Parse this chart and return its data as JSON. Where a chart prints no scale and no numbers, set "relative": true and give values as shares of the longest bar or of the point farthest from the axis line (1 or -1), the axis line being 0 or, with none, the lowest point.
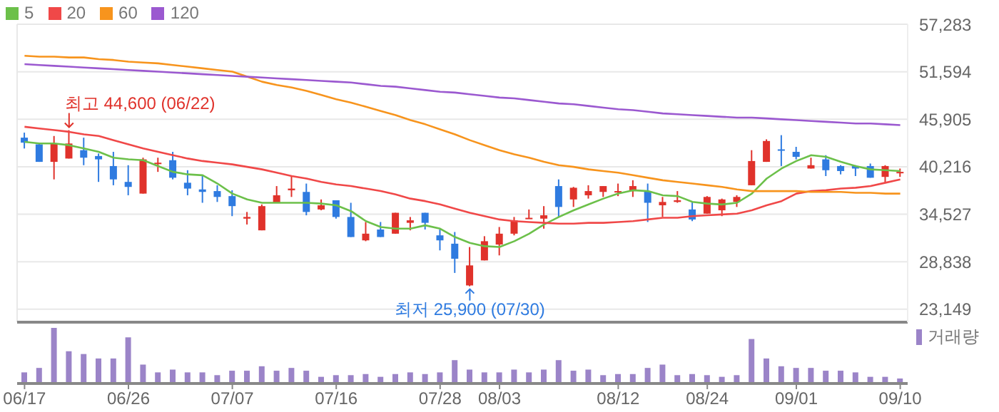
{
  "chart_data": [
    {
      "type": "candlestick",
      "categories": [
        null,
        null,
        null,
        null,
        null,
        null,
        null,
        null,
        null,
        null,
        null,
        null,
        null,
        null,
        null,
        null,
        null,
        null,
        null,
        null,
        null,
        null,
        null,
        null,
        null,
        null,
        null,
        null,
        null,
        null,
        null,
        null,
        null,
        null,
        null,
        null,
        null,
        null,
        null,
        null,
        null,
        null,
        null,
        null,
        null,
        null,
        null,
        null,
        null,
        null,
        null,
        null,
        null,
        null,
        null,
        null,
        null,
        null,
        null,
        null
      ],
      "ohlc": [
        [
          43700,
          44300,
          42400,
          43100
        ],
        [
          42900,
          43000,
          40800,
          40800
        ],
        [
          40800,
          43900,
          38700,
          43000
        ],
        [
          41200,
          44600,
          41200,
          43000
        ],
        [
          42200,
          43700,
          40400,
          41300
        ],
        [
          41500,
          41800,
          38400,
          41100
        ],
        [
          40300,
          42000,
          38000,
          38700
        ],
        [
          38400,
          40400,
          36800,
          37800
        ],
        [
          37000,
          41300,
          37000,
          41100
        ],
        [
          40600,
          41300,
          39600,
          40700
        ],
        [
          41000,
          42000,
          38700,
          38900
        ],
        [
          38300,
          39800,
          36800,
          37600
        ],
        [
          37500,
          39100,
          35900,
          37200
        ],
        [
          37300,
          38000,
          36000,
          36600
        ],
        [
          36700,
          37400,
          34300,
          35500
        ],
        [
          34000,
          34800,
          33300,
          34200
        ],
        [
          32600,
          35700,
          32600,
          35500
        ],
        [
          35900,
          37900,
          35900,
          36800
        ],
        [
          37400,
          39100,
          36600,
          37600
        ],
        [
          37200,
          38200,
          34400,
          34800
        ],
        [
          35100,
          36300,
          35000,
          35600
        ],
        [
          36200,
          36200,
          34000,
          34200
        ],
        [
          34200,
          35900,
          31800,
          31800
        ],
        [
          31400,
          33600,
          31300,
          32200
        ],
        [
          32700,
          33600,
          31800,
          31800
        ],
        [
          32200,
          34700,
          32200,
          34700
        ],
        [
          33500,
          34200,
          32600,
          33800
        ],
        [
          34700,
          34700,
          32700,
          33500
        ],
        [
          32000,
          32700,
          30200,
          31400
        ],
        [
          31000,
          32400,
          27500,
          29200
        ],
        [
          26000,
          30600,
          25900,
          28400
        ],
        [
          29000,
          31900,
          29000,
          31300
        ],
        [
          30900,
          33000,
          29600,
          32200
        ],
        [
          32200,
          34200,
          32000,
          33800
        ],
        [
          34000,
          35100,
          34000,
          34100
        ],
        [
          34000,
          35500,
          32800,
          34400
        ],
        [
          37900,
          38700,
          34200,
          35400
        ],
        [
          36300,
          37800,
          35400,
          37700
        ],
        [
          36800,
          38000,
          36400,
          37300
        ],
        [
          37200,
          37900,
          36600,
          37900
        ],
        [
          37200,
          38200,
          36700,
          37300
        ],
        [
          37300,
          38600,
          36600,
          37900
        ],
        [
          37300,
          38200,
          33600,
          35900
        ],
        [
          35600,
          36600,
          34200,
          36000
        ],
        [
          36000,
          37300,
          35900,
          36200
        ],
        [
          35100,
          36000,
          33700,
          33900
        ],
        [
          34600,
          36700,
          34600,
          36600
        ],
        [
          35000,
          36400,
          34300,
          36300
        ],
        [
          36000,
          36800,
          35400,
          36600
        ],
        [
          38000,
          42200,
          38000,
          40900
        ],
        [
          40800,
          43500,
          40800,
          43300
        ],
        [
          42300,
          44000,
          40300,
          42200
        ],
        [
          42000,
          42600,
          41100,
          41400
        ],
        [
          40000,
          41300,
          40000,
          40400
        ],
        [
          41100,
          41600,
          39100,
          39800
        ],
        [
          40300,
          40400,
          39300,
          39700
        ],
        [
          40300,
          40400,
          39100,
          40000
        ],
        [
          40300,
          40600,
          38900,
          38900
        ],
        [
          39000,
          40400,
          38300,
          40300
        ],
        [
          39500,
          40000,
          39000,
          39600
        ]
      ],
      "colors": [
        "#2f7be0",
        "#2f7be0",
        "#e0322b",
        "#e0322b",
        "#2f7be0",
        "#2f7be0",
        "#2f7be0",
        "#2f7be0",
        "#e0322b",
        "#e0322b",
        "#2f7be0",
        "#2f7be0",
        "#2f7be0",
        "#2f7be0",
        "#2f7be0",
        "#e0322b",
        "#e0322b",
        "#e0322b",
        "#e0322b",
        "#2f7be0",
        "#e0322b",
        "#2f7be0",
        "#2f7be0",
        "#e0322b",
        "#2f7be0",
        "#e0322b",
        "#e0322b",
        "#2f7be0",
        "#2f7be0",
        "#2f7be0",
        "#e0322b",
        "#e0322b",
        "#e0322b",
        "#e0322b",
        "#e0322b",
        "#e0322b",
        "#2f7be0",
        "#e0322b",
        "#e0322b",
        "#e0322b",
        "#e0322b",
        "#e0322b",
        "#2f7be0",
        "#e0322b",
        "#e0322b",
        "#2f7be0",
        "#e0322b",
        "#e0322b",
        "#e0322b",
        "#e0322b",
        "#e0322b",
        "#2f7be0",
        "#2f7be0",
        "#e0322b",
        "#2f7be0",
        "#2f7be0",
        "#2f7be0",
        "#2f7be0",
        "#e0322b",
        "#e0322b"
      ],
      "series": [
        {
          "type": "line",
          "name": "5",
          "color": "#6cc04a",
          "values": [
            43200,
            43000,
            43000,
            42800,
            42400,
            42000,
            41300,
            41100,
            41000,
            40300,
            39600,
            39300,
            39200,
            38200,
            37000,
            36300,
            35900,
            35900,
            35900,
            35900,
            35800,
            35600,
            34900,
            33700,
            33000,
            32800,
            32800,
            33200,
            32800,
            31800,
            31100,
            30700,
            30600,
            31300,
            32200,
            33300,
            34200,
            35000,
            35700,
            36400,
            37000,
            37400,
            37300,
            36800,
            36700,
            36000,
            35800,
            35700,
            35900,
            37000,
            38800,
            40000,
            40900,
            41600,
            41400,
            40800,
            40300,
            39900,
            39800,
            39700
          ]
        },
        {
          "type": "line",
          "name": "20",
          "color": "#f04848",
          "values": [
            45000,
            44800,
            44600,
            44400,
            44100,
            43900,
            43400,
            42900,
            42400,
            42000,
            41600,
            41200,
            40900,
            40700,
            40500,
            40200,
            39900,
            39500,
            39100,
            38800,
            38400,
            38100,
            37900,
            37600,
            37300,
            36900,
            36400,
            36100,
            35700,
            35200,
            34700,
            34300,
            33900,
            33700,
            33600,
            33500,
            33400,
            33400,
            33500,
            33500,
            33600,
            33700,
            33900,
            34100,
            34100,
            34300,
            34400,
            34500,
            34600,
            35000,
            35600,
            36100,
            37000,
            37300,
            37400,
            37600,
            37700,
            37900,
            38300,
            38700
          ]
        },
        {
          "type": "line",
          "name": "60",
          "color": "#f7941d",
          "values": [
            53500,
            53400,
            53400,
            53300,
            53300,
            53100,
            53000,
            52800,
            52700,
            52600,
            52400,
            52200,
            52000,
            51800,
            51600,
            51000,
            50400,
            50000,
            49700,
            49300,
            48800,
            48300,
            47900,
            47400,
            46900,
            46400,
            45800,
            45300,
            44700,
            44100,
            43400,
            42800,
            42200,
            41700,
            41300,
            40800,
            40400,
            40200,
            39900,
            39700,
            39500,
            39200,
            38900,
            38600,
            38400,
            38200,
            38000,
            37800,
            37500,
            37300,
            37300,
            37300,
            37300,
            37200,
            37200,
            37200,
            37100,
            37100,
            37000,
            37000
          ]
        },
        {
          "type": "line",
          "name": "120",
          "color": "#9b59d0",
          "values": [
            52500,
            52400,
            52300,
            52200,
            52100,
            52000,
            51900,
            51800,
            51700,
            51600,
            51500,
            51400,
            51300,
            51200,
            51100,
            51000,
            50900,
            50800,
            50700,
            50600,
            50500,
            50400,
            50300,
            50100,
            49900,
            49800,
            49600,
            49400,
            49200,
            49100,
            48900,
            48700,
            48500,
            48400,
            48200,
            48000,
            47800,
            47700,
            47500,
            47300,
            47100,
            47000,
            46800,
            46600,
            46500,
            46400,
            46300,
            46200,
            46100,
            46100,
            46000,
            45900,
            45800,
            45700,
            45600,
            45500,
            45400,
            45400,
            45300,
            45200
          ]
        }
      ],
      "ylim": [
        21600,
        57283
      ],
      "yticks": [
        {
          "value": 23149,
          "label": "23,149"
        },
        {
          "value": 28838,
          "label": "28,838"
        },
        {
          "value": 34527,
          "label": "34,527"
        },
        {
          "value": 40216,
          "label": "40,216"
        },
        {
          "value": 45905,
          "label": "45,905"
        },
        {
          "value": 51594,
          "label": "51,594"
        },
        {
          "value": 57283,
          "label": "57,283"
        }
      ],
      "grid": true,
      "legend": "top left",
      "tick_labels": "y",
      "annotations": [
        "최고 44,600 (06/22)",
        "최저 25,900 (07/30)"
      ]
    },
    {
      "type": "bar",
      "categories": [
        "06/17",
        null,
        null,
        null,
        null,
        null,
        null,
        "06/26",
        null,
        null,
        null,
        null,
        null,
        null,
        "07/07",
        null,
        null,
        null,
        null,
        null,
        null,
        "07/16",
        null,
        null,
        null,
        null,
        null,
        null,
        "07/28",
        null,
        null,
        null,
        "08/03",
        null,
        null,
        null,
        null,
        null,
        null,
        null,
        "08/12",
        null,
        null,
        null,
        null,
        null,
        "08/24",
        null,
        null,
        null,
        null,
        null,
        "09/01",
        null,
        null,
        null,
        null,
        null,
        null,
        "09/10"
      ],
      "series": [
        {
          "name": "거래량",
          "color": "#9b84c8",
          "values": [
            0.2,
            0.28,
            1,
            0.58,
            0.53,
            0.45,
            0.45,
            0.83,
            0.34,
            0.2,
            0.25,
            0.2,
            0.2,
            0.15,
            0.23,
            0.23,
            0.31,
            0.23,
            0.28,
            0.23,
            0.12,
            0.15,
            0.15,
            0.17,
            0.12,
            0.17,
            0.2,
            0.17,
            0.2,
            0.42,
            0.25,
            0.2,
            0.2,
            0.25,
            0.2,
            0.25,
            0.42,
            0.23,
            0.25,
            0.15,
            0.17,
            0.17,
            0.28,
            0.34,
            0.15,
            0.17,
            0.15,
            0.12,
            0.15,
            0.8,
            0.45,
            0.31,
            0.28,
            0.28,
            0.23,
            0.23,
            0.2,
            0.12,
            0.12,
            0.09
          ]
        }
      ],
      "relative": true,
      "legend": "top right",
      "tick_labels": "x"
    }
  ]
}
